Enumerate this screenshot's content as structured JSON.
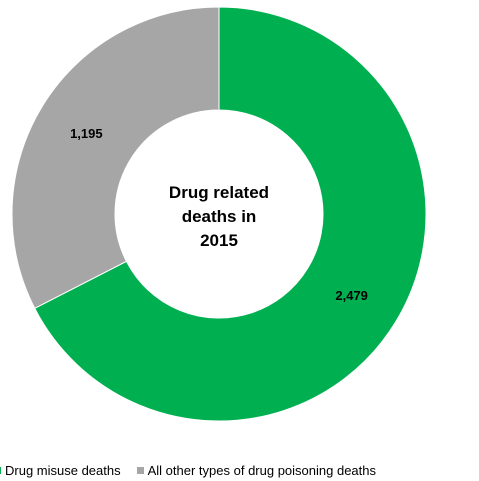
{
  "chart_data": {
    "type": "pie",
    "title": "Drug related deaths in 2015",
    "title_lines": [
      "Drug related",
      "deaths in",
      "2015"
    ],
    "series": [
      {
        "name": "Drug misuse deaths",
        "value": 2479,
        "label": "2,479",
        "color": "#00b050"
      },
      {
        "name": "All other types of drug poisoning deaths",
        "value": 1195,
        "label": "1,195",
        "color": "#a6a6a6"
      }
    ],
    "donut": true,
    "legend_position": "bottom",
    "grid": false
  }
}
